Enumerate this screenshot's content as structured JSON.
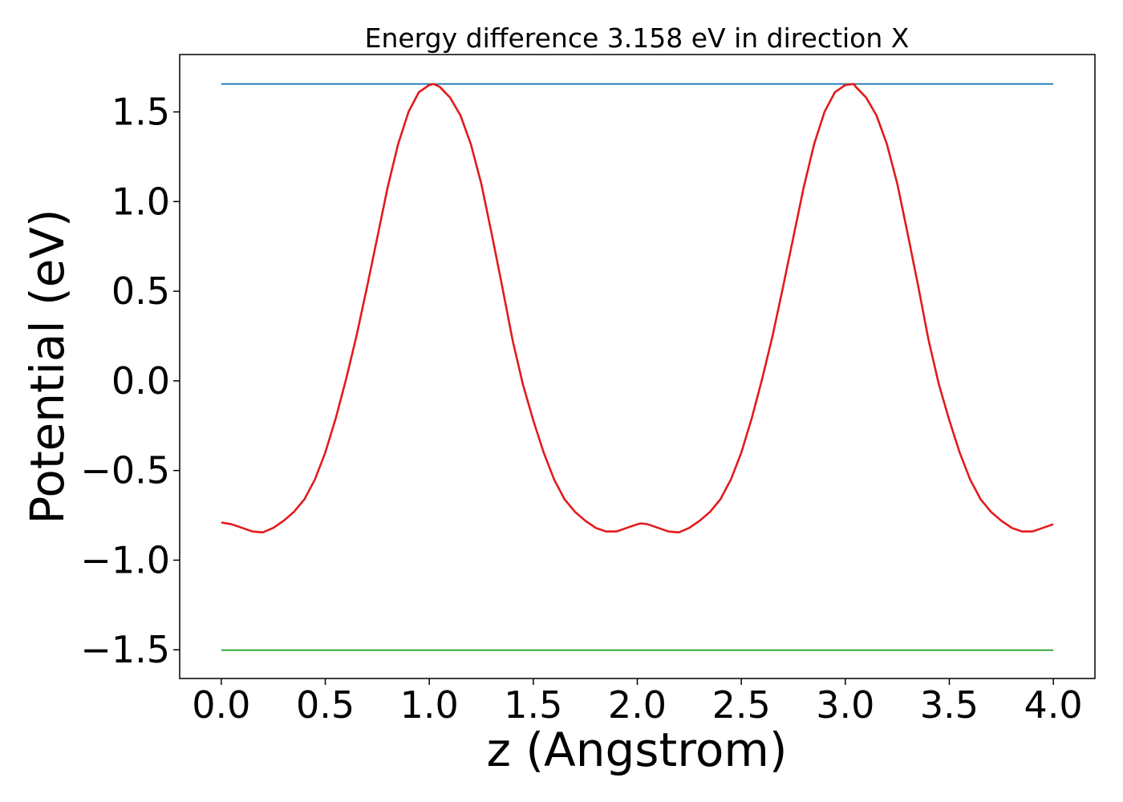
{
  "chart_data": {
    "type": "line",
    "title": "Energy difference 3.158 eV in direction X",
    "xlabel": "z (Angstrom)",
    "ylabel": "Potential (eV)",
    "xlim": [
      -0.2,
      4.2
    ],
    "ylim": [
      -1.66,
      1.82
    ],
    "grid": false,
    "legend": "none",
    "x_ticks": [
      0.0,
      0.5,
      1.0,
      1.5,
      2.0,
      2.5,
      3.0,
      3.5,
      4.0
    ],
    "x_tick_labels": [
      "0.0",
      "0.5",
      "1.0",
      "1.5",
      "2.0",
      "2.5",
      "3.0",
      "3.5",
      "4.0"
    ],
    "y_ticks": [
      -1.5,
      -1.0,
      -0.5,
      0.0,
      0.5,
      1.0,
      1.5
    ],
    "y_tick_labels": [
      "−1.5",
      "−1.0",
      "−0.5",
      "0.0",
      "0.5",
      "1.0",
      "1.5"
    ],
    "series": [
      {
        "color": "#1f77b4",
        "x": [
          0.0,
          4.0
        ],
        "y": [
          1.656,
          1.656
        ]
      },
      {
        "color": "#2ca02c",
        "x": [
          0.0,
          4.0
        ],
        "y": [
          -1.502,
          -1.502
        ]
      },
      {
        "color": "#e31a1c",
        "x": [
          0.0,
          0.05,
          0.1,
          0.15,
          0.2,
          0.25,
          0.3,
          0.35,
          0.4,
          0.45,
          0.5,
          0.55,
          0.6,
          0.65,
          0.7,
          0.75,
          0.8,
          0.85,
          0.9,
          0.95,
          1.0,
          1.02,
          1.05,
          1.1,
          1.15,
          1.2,
          1.25,
          1.3,
          1.35,
          1.4,
          1.45,
          1.5,
          1.55,
          1.6,
          1.65,
          1.7,
          1.75,
          1.8,
          1.85,
          1.9,
          1.95,
          2.0,
          2.02,
          2.05,
          2.1,
          2.15,
          2.2,
          2.25,
          2.3,
          2.35,
          2.4,
          2.45,
          2.5,
          2.55,
          2.6,
          2.65,
          2.7,
          2.75,
          2.8,
          2.85,
          2.9,
          2.95,
          3.0,
          3.04,
          3.05,
          3.1,
          3.15,
          3.2,
          3.25,
          3.3,
          3.35,
          3.4,
          3.45,
          3.5,
          3.55,
          3.6,
          3.65,
          3.7,
          3.75,
          3.8,
          3.85,
          3.9,
          3.95,
          4.0
        ],
        "y": [
          -0.79,
          -0.8,
          -0.82,
          -0.84,
          -0.845,
          -0.82,
          -0.78,
          -0.73,
          -0.66,
          -0.55,
          -0.4,
          -0.21,
          0.01,
          0.25,
          0.52,
          0.8,
          1.08,
          1.32,
          1.5,
          1.61,
          1.65,
          1.656,
          1.64,
          1.58,
          1.48,
          1.32,
          1.1,
          0.82,
          0.53,
          0.23,
          -0.02,
          -0.22,
          -0.4,
          -0.55,
          -0.66,
          -0.73,
          -0.78,
          -0.82,
          -0.84,
          -0.84,
          -0.82,
          -0.8,
          -0.795,
          -0.8,
          -0.82,
          -0.84,
          -0.845,
          -0.82,
          -0.78,
          -0.73,
          -0.66,
          -0.55,
          -0.4,
          -0.21,
          0.01,
          0.25,
          0.52,
          0.8,
          1.08,
          1.32,
          1.5,
          1.61,
          1.65,
          1.656,
          1.64,
          1.58,
          1.48,
          1.32,
          1.1,
          0.82,
          0.53,
          0.23,
          -0.02,
          -0.22,
          -0.4,
          -0.55,
          -0.66,
          -0.73,
          -0.78,
          -0.82,
          -0.84,
          -0.84,
          -0.82,
          -0.8
        ]
      }
    ]
  }
}
